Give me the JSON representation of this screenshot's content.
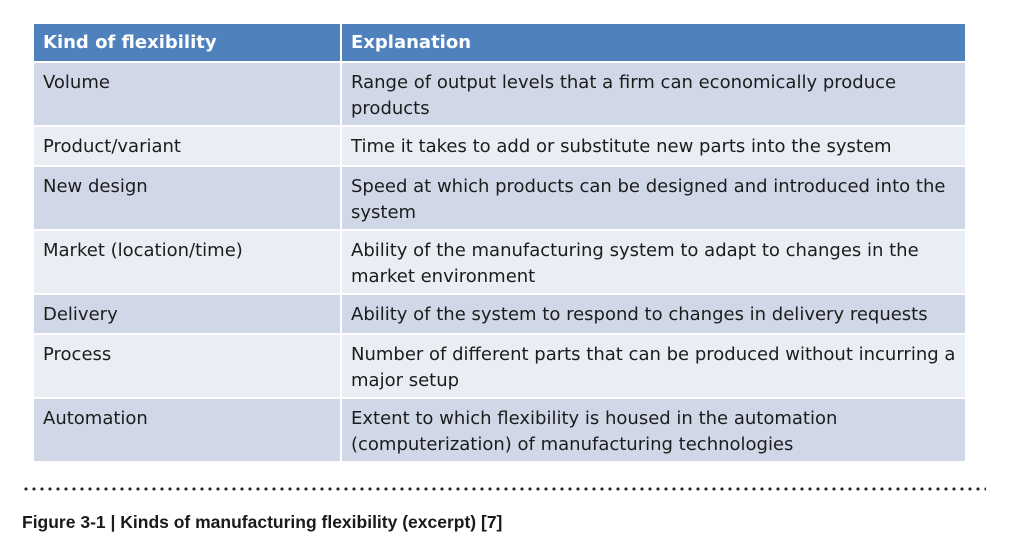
{
  "table": {
    "headers": [
      "Kind of flexibility",
      "Explanation"
    ],
    "rows": [
      [
        "Volume",
        "Range of output levels that a firm can economically produce products"
      ],
      [
        "Product/variant",
        "Time it takes to add or substitute new parts into the system"
      ],
      [
        "New design",
        "Speed at which products can be designed and introduced into the system"
      ],
      [
        "Market (location/time)",
        "Ability of the manufacturing system to adapt to changes in the market environment"
      ],
      [
        "Delivery",
        "Ability of the system to respond to changes in delivery requests"
      ],
      [
        "Process",
        "Number of different parts that can be produced without incurring a major setup"
      ],
      [
        "Automation",
        "Extent to which flexibility is housed in the automation (computerization) of manufacturing technologies"
      ]
    ]
  },
  "caption": "Figure 3-1 | Kinds of manufacturing flexibility (excerpt) [7]",
  "colors": {
    "header_bg": "#4f81bd",
    "row_odd_bg": "#d0d8e8",
    "row_even_bg": "#e9edf4"
  }
}
